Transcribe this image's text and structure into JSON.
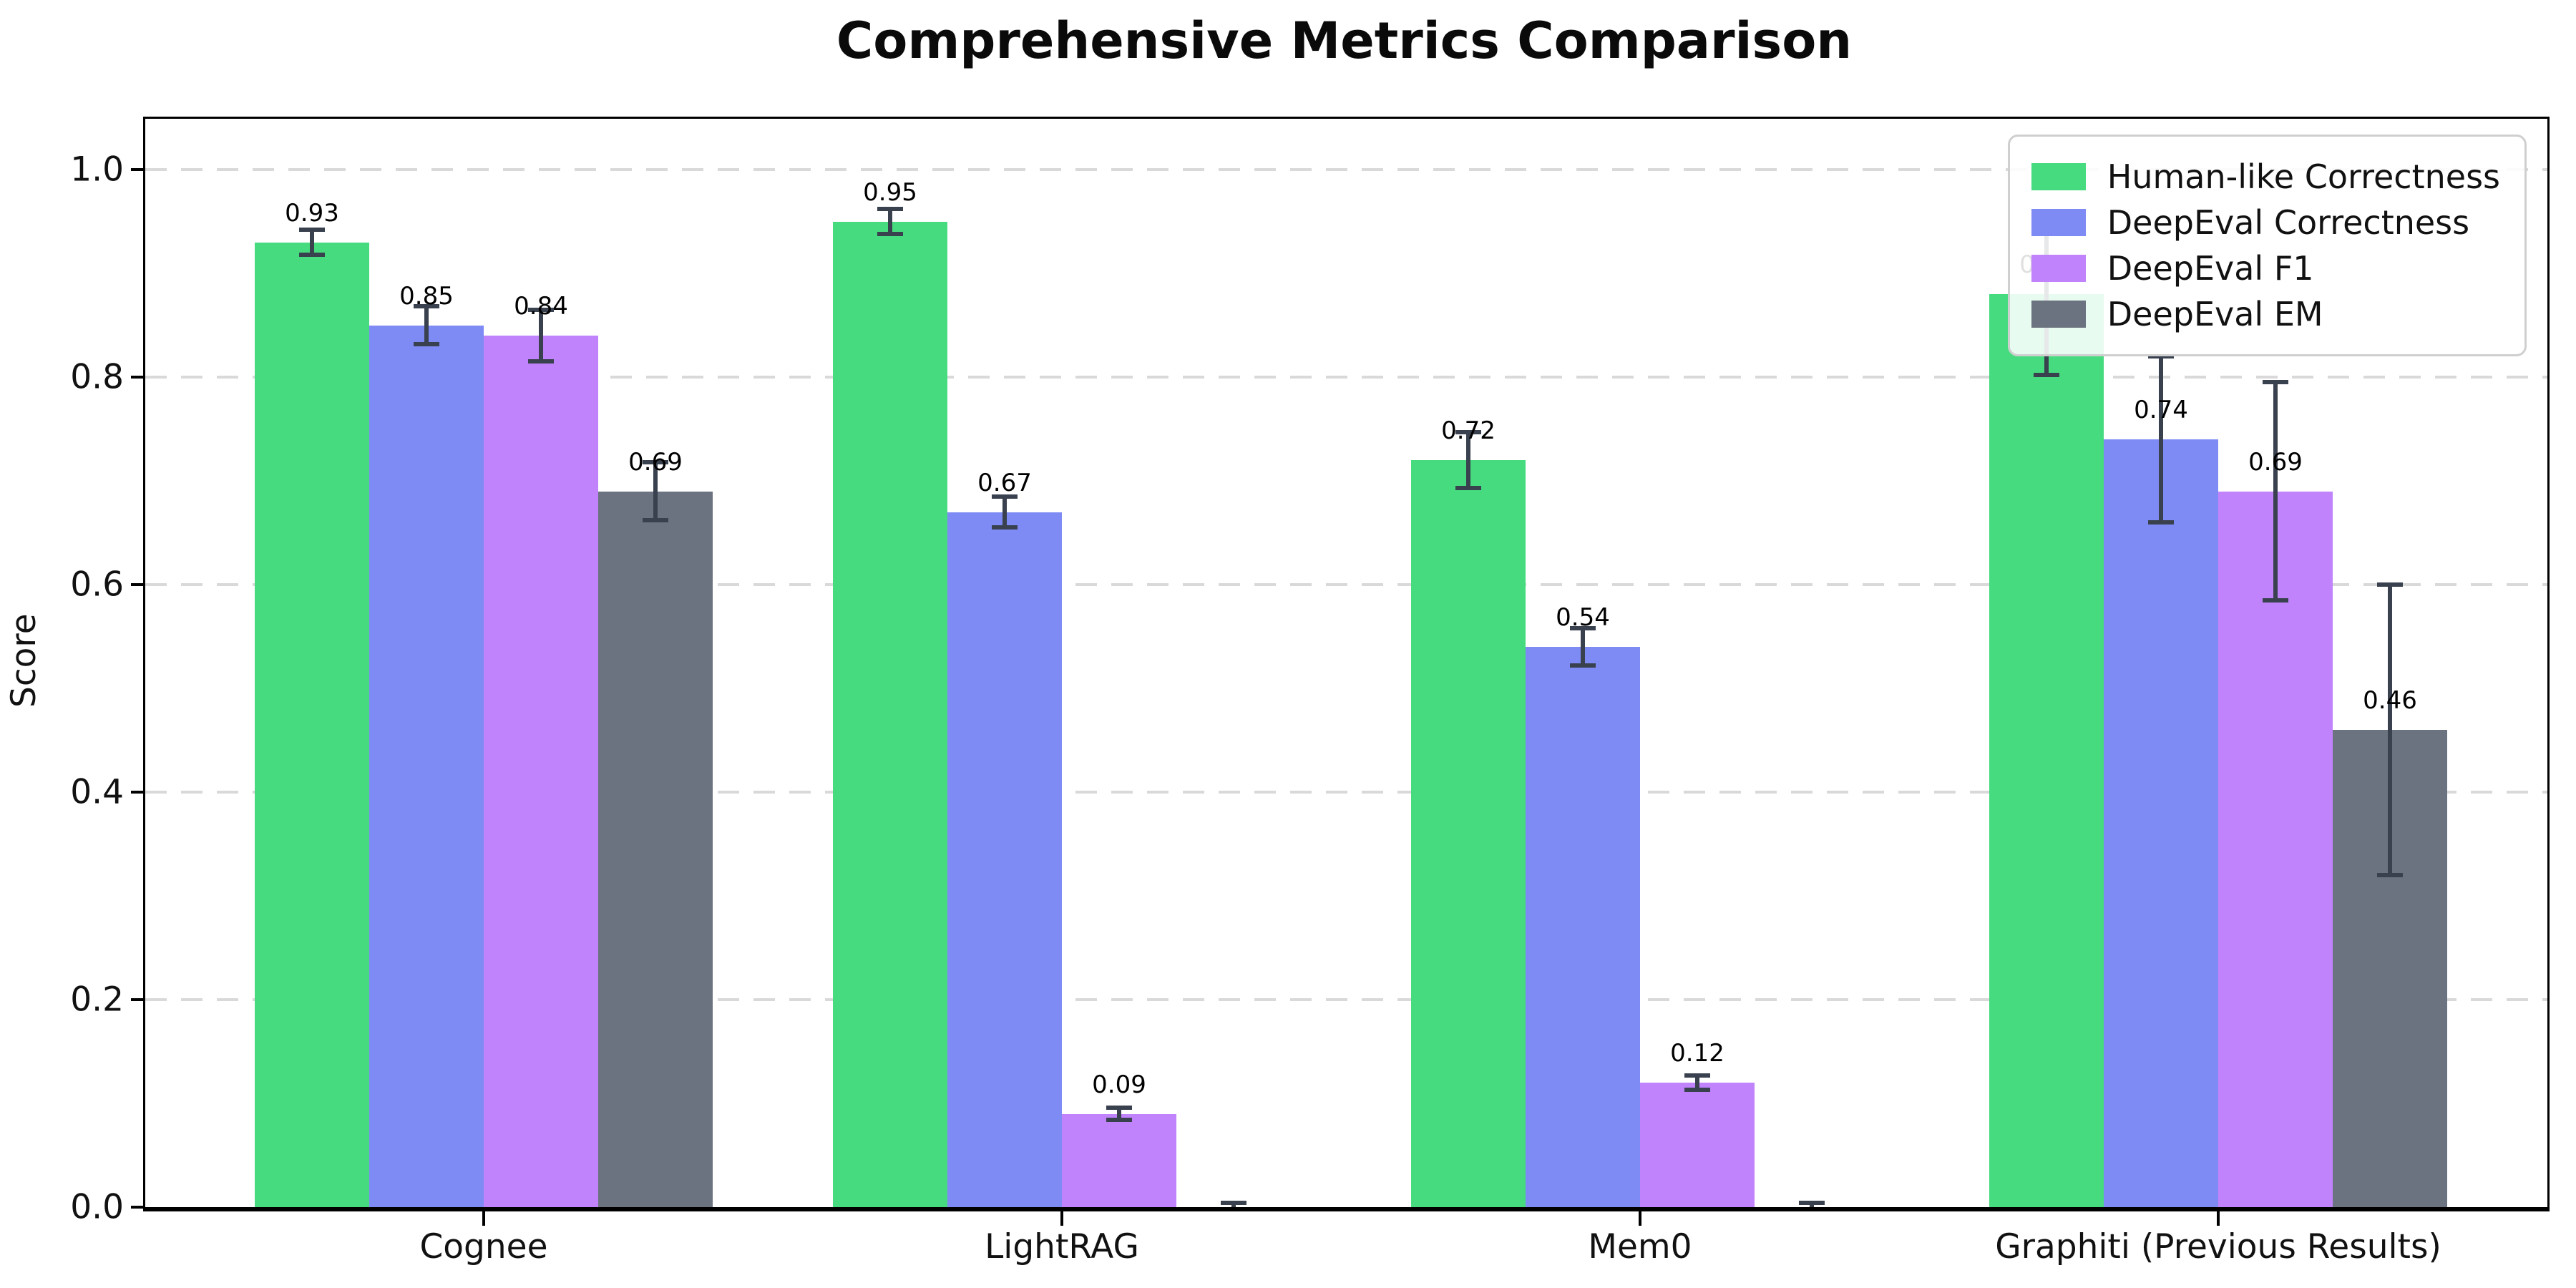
{
  "chart_data": {
    "type": "bar",
    "title": "Comprehensive Metrics Comparison",
    "xlabel": "",
    "ylabel": "Score",
    "categories": [
      "Cognee",
      "LightRAG",
      "Mem0",
      "Graphiti (Previous Results)"
    ],
    "series": [
      {
        "name": "Human-like Correctness",
        "color": "#47db80",
        "values": [
          0.93,
          0.95,
          0.72,
          0.88
        ],
        "errors": [
          0.012,
          0.012,
          0.027,
          0.078
        ],
        "labels": [
          "0.93",
          "0.95",
          "0.72",
          "0.88"
        ]
      },
      {
        "name": "DeepEval Correctness",
        "color": "#7f8bf4",
        "values": [
          0.85,
          0.67,
          0.54,
          0.74
        ],
        "errors": [
          0.018,
          0.015,
          0.018,
          0.08
        ],
        "labels": [
          "0.85",
          "0.67",
          "0.54",
          "0.74"
        ]
      },
      {
        "name": "DeepEval F1",
        "color": "#c083fb",
        "values": [
          0.84,
          0.09,
          0.12,
          0.69
        ],
        "errors": [
          0.025,
          0.006,
          0.007,
          0.105
        ],
        "labels": [
          "0.84",
          "0.09",
          "0.12",
          "0.69"
        ]
      },
      {
        "name": "DeepEval EM",
        "color": "#6b7280",
        "values": [
          0.69,
          0.0,
          0.0,
          0.46
        ],
        "errors": [
          0.028,
          0.004,
          0.004,
          0.14
        ],
        "labels": [
          "0.69",
          null,
          null,
          "0.46"
        ]
      }
    ],
    "yticks": [
      0.0,
      0.2,
      0.4,
      0.6,
      0.8,
      1.0
    ],
    "ytick_labels": [
      "0.0",
      "0.2",
      "0.4",
      "0.6",
      "0.8",
      "1.0"
    ],
    "ylim": [
      0,
      1.049
    ],
    "grid": {
      "axis": "y",
      "style": "dashed",
      "color": "#d9d9d9"
    },
    "legend_position": "upper right",
    "error_bar_color": "#39414f",
    "background_color": "#ffffff"
  }
}
